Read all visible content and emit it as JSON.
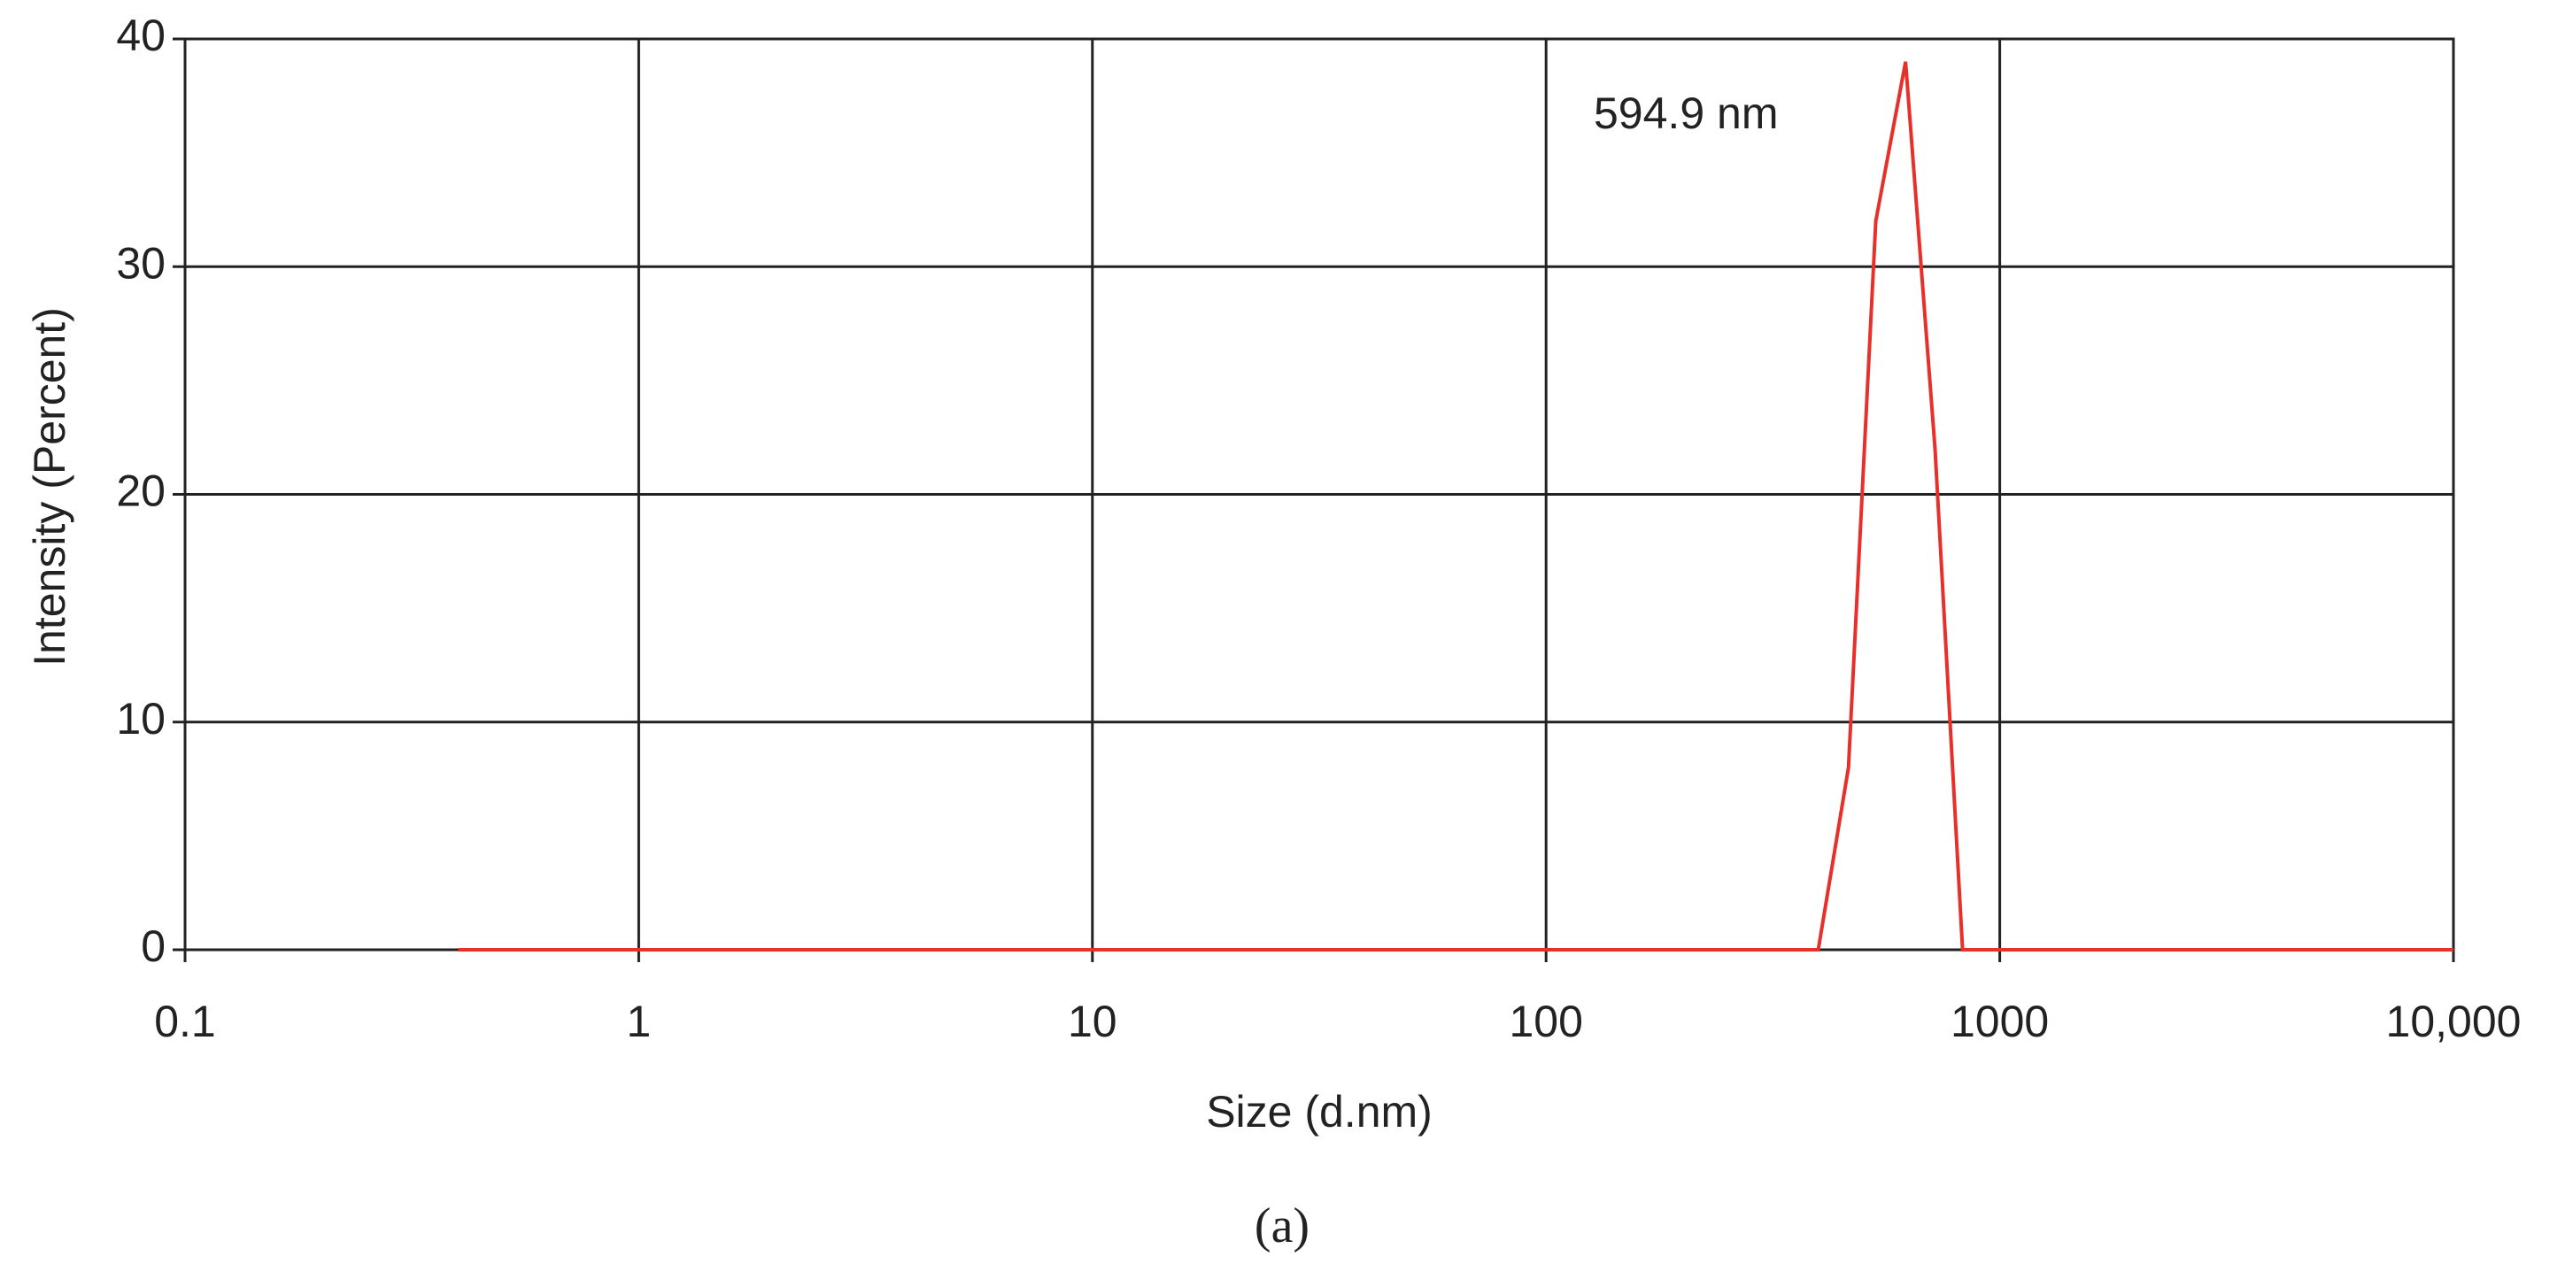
{
  "chart_data": {
    "type": "line",
    "x_label": "Size (d.nm)",
    "y_label": "Intensity (Percent)",
    "annotation": "594.9 nm",
    "caption": "(a)",
    "x": [
      0.4,
      1,
      10,
      100,
      398,
      464,
      533,
      620,
      720,
      828,
      1000,
      10000
    ],
    "series": [
      {
        "color": "#e8302a",
        "values": [
          0,
          0,
          0,
          0,
          0,
          8,
          32,
          39,
          22,
          0,
          0,
          0
        ]
      }
    ],
    "xscale": "log",
    "xlim": [
      0.1,
      10000
    ],
    "xticks": [
      0.1,
      1,
      10,
      100,
      1000,
      {
        "value": 10000,
        "label": "10,000"
      }
    ],
    "ylim": [
      0,
      40
    ],
    "yticks": [
      0,
      10,
      20,
      30,
      40
    ],
    "grid": true
  }
}
